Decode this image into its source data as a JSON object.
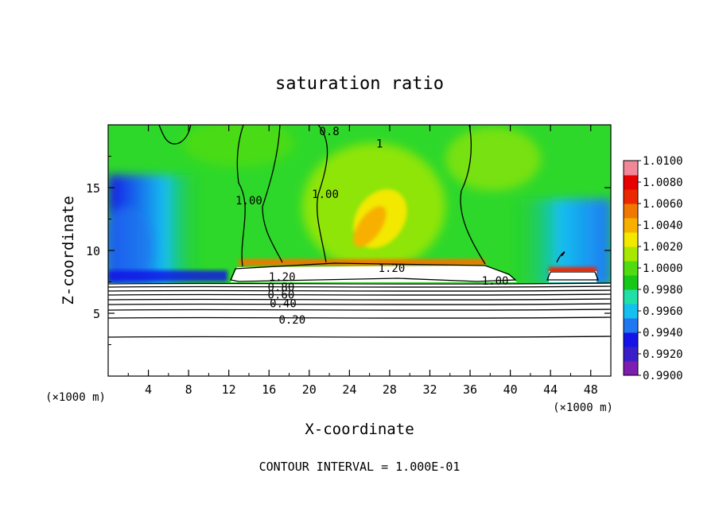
{
  "chart_data": {
    "type": "heatmap",
    "title": "saturation ratio",
    "xlabel": "X-coordinate",
    "ylabel": "Z-coordinate",
    "x_unit": "(×1000 m)",
    "z_unit": "(×1000 m)",
    "xlim": [
      0,
      50
    ],
    "ylim": [
      0,
      20
    ],
    "x_ticks": [
      "4",
      "8",
      "12",
      "16",
      "20",
      "24",
      "28",
      "32",
      "36",
      "40",
      "44",
      "48"
    ],
    "y_ticks": [
      "5",
      "10",
      "15"
    ],
    "contour_interval_text": "CONTOUR INTERVAL = 1.000E-01",
    "contour_labels": [
      {
        "text": "0.20",
        "x": 18.3,
        "y": 4.5
      },
      {
        "text": "0.40",
        "x": 17.4,
        "y": 5.8
      },
      {
        "text": "0.60",
        "x": 17.2,
        "y": 6.5
      },
      {
        "text": "0.80",
        "x": 17.2,
        "y": 7.1
      },
      {
        "text": "1.20",
        "x": 17.3,
        "y": 7.9
      },
      {
        "text": "1.20",
        "x": 28.2,
        "y": 8.6
      },
      {
        "text": "1.00",
        "x": 38.5,
        "y": 7.6
      },
      {
        "text": "1.00",
        "x": 14.0,
        "y": 14.0
      },
      {
        "text": "1.00",
        "x": 21.6,
        "y": 14.5
      },
      {
        "text": "0.8",
        "x": 22.0,
        "y": 19.5
      },
      {
        "text": "1",
        "x": 27.0,
        "y": 18.5
      }
    ],
    "colorbar": {
      "min": 0.99,
      "max": 1.01,
      "ticks": [
        "1.0100",
        "1.0080",
        "1.0060",
        "1.0040",
        "1.0020",
        "1.0000",
        "0.9980",
        "0.9960",
        "0.9940",
        "0.9920",
        "0.9900"
      ],
      "colors": [
        "#7c1fb0",
        "#3a1fc8",
        "#1414e6",
        "#1f78f0",
        "#13c0f0",
        "#20e0a8",
        "#18c818",
        "#50dc10",
        "#a8e800",
        "#f2e800",
        "#f8b000",
        "#f07800",
        "#ec2800",
        "#e80000",
        "#f08898"
      ]
    }
  }
}
